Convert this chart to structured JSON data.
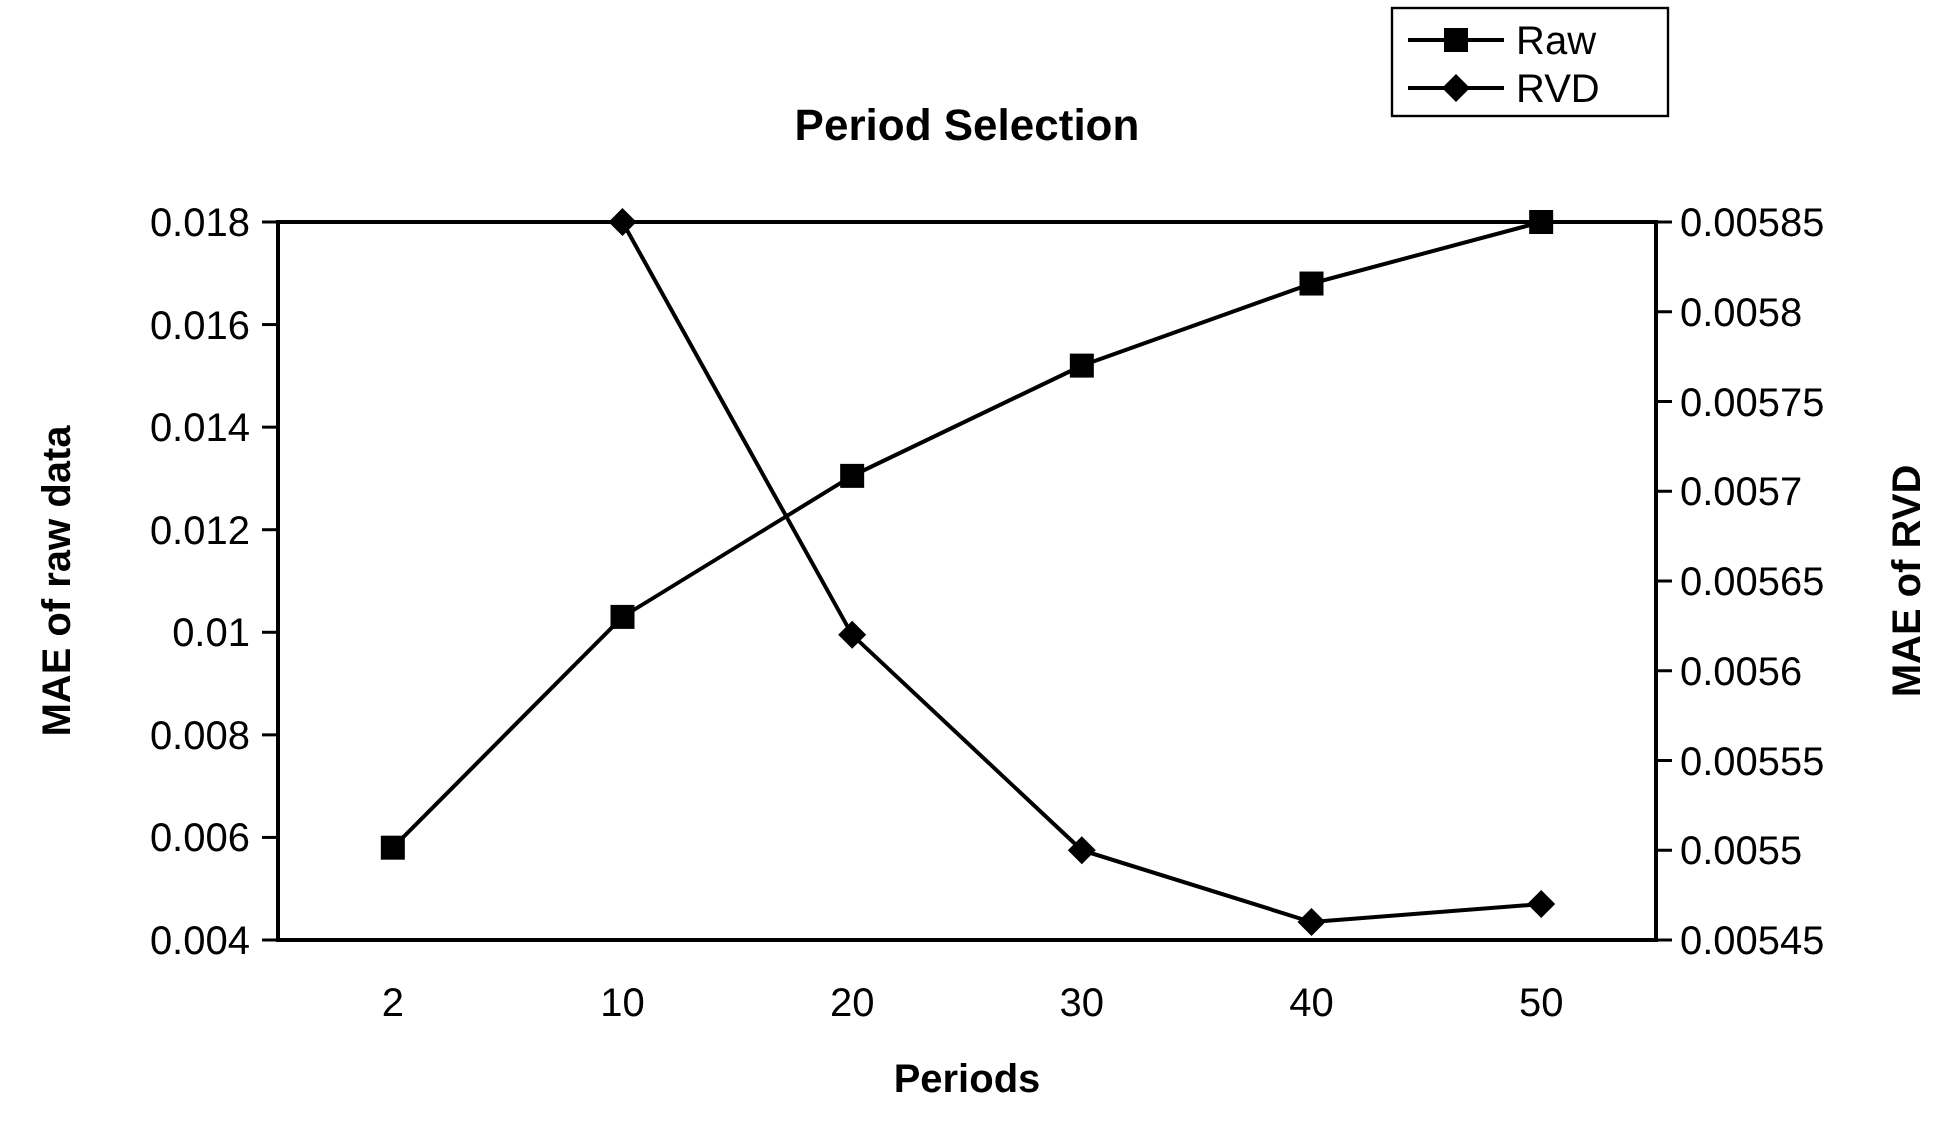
{
  "chart_data": {
    "type": "line",
    "title": "Period Selection",
    "xlabel": "Periods",
    "ylabel": "MAE of raw data",
    "y2label": "MAE of RVD",
    "categories": [
      "2",
      "10",
      "20",
      "30",
      "40",
      "50"
    ],
    "series": [
      {
        "name": "Raw",
        "color": "#000000",
        "marker": "square",
        "values": [
          0.0058,
          0.0103,
          0.01305,
          0.0152,
          0.0168,
          0.018
        ]
      },
      {
        "name": "RVD",
        "color": "#000000",
        "marker": "diamond",
        "axis": "y2",
        "values": [
          null,
          0.00585,
          0.00562,
          0.0055,
          0.00546,
          0.00547
        ]
      }
    ],
    "ylim": [
      0.004,
      0.018
    ],
    "yticks": [
      0.004,
      0.006,
      0.008,
      0.01,
      0.012,
      0.014,
      0.016,
      0.018
    ],
    "y2lim": [
      0.00545,
      0.00585
    ],
    "y2ticks": [
      0.00545,
      0.0055,
      0.00555,
      0.0056,
      0.00565,
      0.0057,
      0.00575,
      0.0058,
      0.00585
    ],
    "grid": false,
    "legend": "top right",
    "line_style": "solid"
  }
}
